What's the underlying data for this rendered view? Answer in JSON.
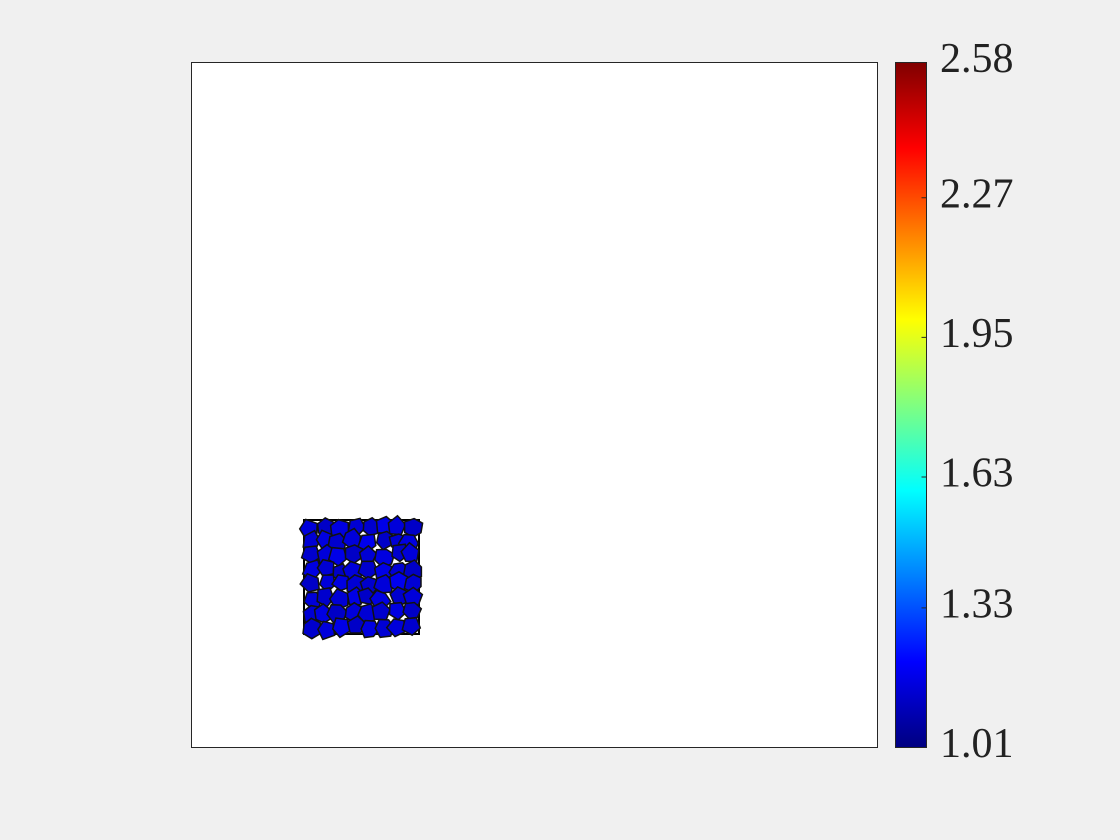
{
  "chart_data": {
    "type": "voronoi",
    "colormap": "jet",
    "values": [
      1.15,
      1.12,
      1.16,
      1.14,
      1.13,
      1.17,
      1.15,
      1.12,
      1.14,
      1.16,
      1.13,
      1.15,
      1.18,
      1.12,
      1.14,
      1.16,
      1.13,
      1.15,
      1.17,
      1.12,
      1.14,
      1.16,
      1.13,
      1.15,
      1.16,
      1.14,
      1.12,
      1.15,
      1.13,
      1.17,
      1.14,
      1.12,
      1.12,
      1.15,
      1.16,
      1.14,
      1.13,
      1.15,
      1.18,
      1.14,
      1.15,
      1.13,
      1.14,
      1.17,
      1.12,
      1.16,
      1.13,
      1.15,
      1.14,
      1.16,
      1.12,
      1.15,
      1.14,
      1.13,
      1.16,
      1.12,
      1.13,
      1.15,
      1.17,
      1.12,
      1.16,
      1.14,
      1.15,
      1.13
    ],
    "clim": [
      1.01,
      2.58
    ],
    "cticks": [
      1.01,
      1.33,
      1.63,
      1.95,
      2.27,
      2.58
    ]
  }
}
